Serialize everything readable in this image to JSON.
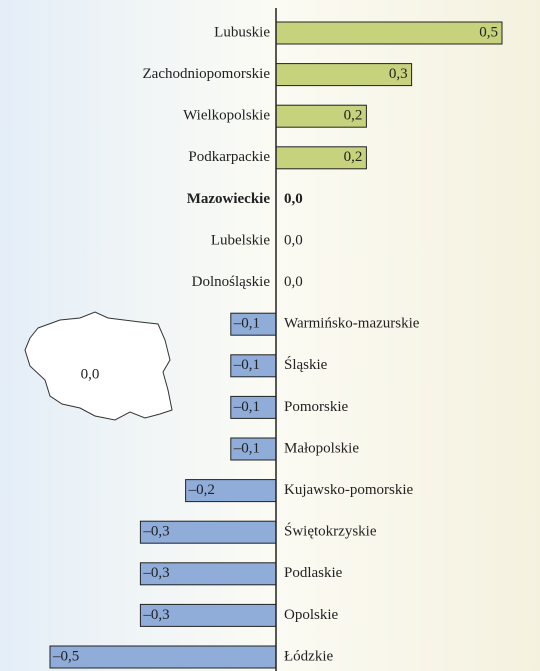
{
  "chart_data": {
    "type": "diverging-bar",
    "categories": [
      "Lubuskie",
      "Zachodniopomorskie",
      "Wielkopolskie",
      "Podkarpackie",
      "Mazowieckie",
      "Lubelskie",
      "Dolnośląskie",
      "Warmińsko-mazurskie",
      "Śląskie",
      "Pomorskie",
      "Małopolskie",
      "Kujawsko-pomorskie",
      "Świętokrzyskie",
      "Podlaskie",
      "Opolskie",
      "Łódzkie"
    ],
    "values": [
      0.5,
      0.3,
      0.2,
      0.2,
      0,
      0,
      0,
      -0.1,
      -0.1,
      -0.1,
      -0.1,
      -0.2,
      -0.3,
      -0.3,
      -0.3,
      -0.5
    ],
    "value_labels": [
      "0,5",
      "0,3",
      "0,2",
      "0,2",
      "0,0",
      "0,0",
      "0,0",
      "–0,1",
      "–0,1",
      "–0,1",
      "–0,1",
      "–0,2",
      "–0,3",
      "–0,3",
      "–0,3",
      "–0,5"
    ],
    "positive_color": "#c6d27c",
    "negative_color": "#8fadd8",
    "highlight_index": 4,
    "annotation": "0,0"
  }
}
